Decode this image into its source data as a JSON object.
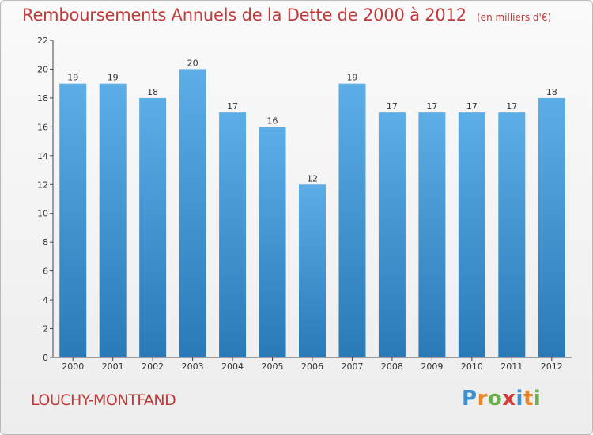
{
  "chart_data": {
    "type": "bar",
    "title": "Remboursements Annuels de la Dette de 2000 à 2012",
    "unit_note": "(en milliers d'€)",
    "categories": [
      "2000",
      "2001",
      "2002",
      "2003",
      "2004",
      "2005",
      "2006",
      "2007",
      "2008",
      "2009",
      "2010",
      "2011",
      "2012"
    ],
    "values": [
      19,
      19,
      18,
      20,
      17,
      16,
      12,
      19,
      17,
      17,
      17,
      17,
      18
    ],
    "ylim": [
      0,
      22
    ],
    "yticks": [
      0,
      2,
      4,
      6,
      8,
      10,
      12,
      14,
      16,
      18,
      20,
      22
    ],
    "grid": false,
    "bar_color_top": "#5dade7",
    "bar_color_bottom": "#2a7ab8",
    "title_color": "#c03a3a"
  },
  "commune": "LOUCHY-MONTFAND",
  "logo": {
    "letters": [
      "P",
      "r",
      "o",
      "x",
      "i",
      "t",
      "i"
    ],
    "colors": [
      "#3e8fd0",
      "#e8862a",
      "#6ab04c",
      "#d63a3a",
      "#3e8fd0",
      "#e8862a",
      "#6ab04c"
    ]
  }
}
